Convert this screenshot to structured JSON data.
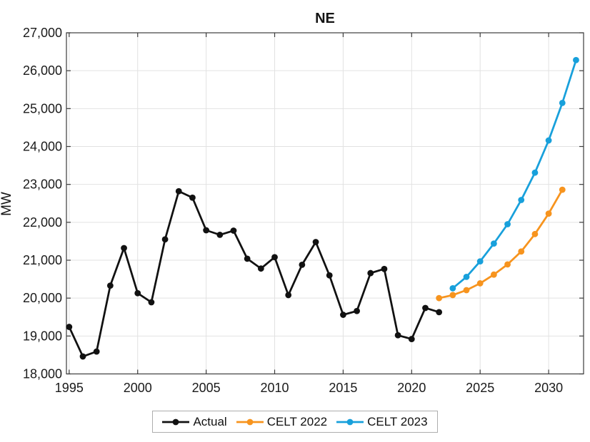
{
  "chart_data": {
    "type": "line",
    "title": "NE",
    "xlabel": "",
    "ylabel": "MW",
    "xlim": [
      1994.8,
      2032.55
    ],
    "ylim": [
      18000,
      27000
    ],
    "grid": true,
    "legend_position": "bottom-center-outside",
    "axis_color": "#3c3c3c",
    "grid_color": "#e2e2e2",
    "background_color": "#ffffff",
    "xticks": [
      1995,
      2000,
      2005,
      2010,
      2015,
      2020,
      2025,
      2030
    ],
    "xtick_labels": [
      "1995",
      "2000",
      "2005",
      "2010",
      "2015",
      "2020",
      "2025",
      "2030"
    ],
    "yticks": [
      18000,
      19000,
      20000,
      21000,
      22000,
      23000,
      24000,
      25000,
      26000,
      27000
    ],
    "ytick_labels": [
      "18,000",
      "19,000",
      "20,000",
      "21,000",
      "22,000",
      "23,000",
      "24,000",
      "25,000",
      "26,000",
      "27,000"
    ],
    "series": [
      {
        "name": "Actual",
        "color": "#111111",
        "x": [
          1995,
          1996,
          1997,
          1998,
          1999,
          2000,
          2001,
          2002,
          2003,
          2004,
          2005,
          2006,
          2007,
          2008,
          2009,
          2010,
          2011,
          2012,
          2013,
          2014,
          2015,
          2016,
          2017,
          2018,
          2019,
          2020,
          2021,
          2022
        ],
        "values": [
          19240,
          18460,
          18590,
          20330,
          21320,
          20130,
          19890,
          21550,
          22820,
          22650,
          21790,
          21670,
          21780,
          21040,
          20780,
          21080,
          20080,
          20880,
          21480,
          20600,
          19560,
          19660,
          20660,
          20770,
          19020,
          18920,
          19740,
          19630
        ]
      },
      {
        "name": "CELT 2022",
        "color": "#F7941E",
        "x": [
          2022,
          2023,
          2024,
          2025,
          2026,
          2027,
          2028,
          2029,
          2030,
          2031
        ],
        "values": [
          20000,
          20080,
          20210,
          20390,
          20620,
          20890,
          21230,
          21690,
          22230,
          22860
        ]
      },
      {
        "name": "CELT 2023",
        "color": "#18A0DB",
        "x": [
          2023,
          2024,
          2025,
          2026,
          2027,
          2028,
          2029,
          2030,
          2031,
          2032
        ],
        "values": [
          20260,
          20560,
          20970,
          21440,
          21950,
          22590,
          23310,
          24160,
          25150,
          26280
        ]
      }
    ]
  }
}
